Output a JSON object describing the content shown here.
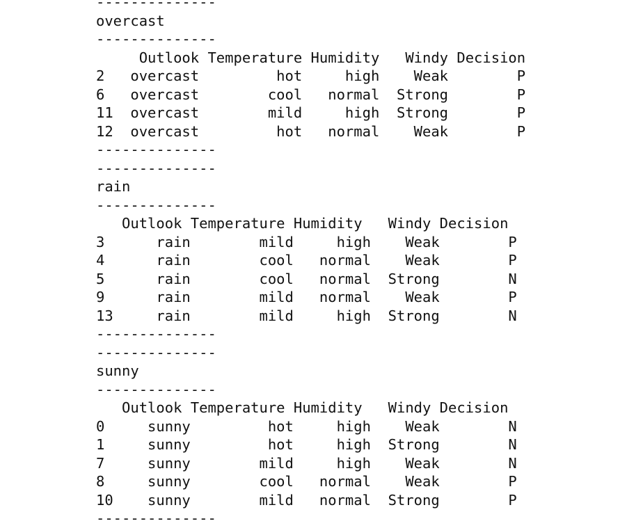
{
  "output_lines": [
    "--------------",
    "overcast",
    "--------------",
    "     Outlook Temperature Humidity   Windy Decision",
    "2   overcast         hot     high    Weak        P",
    "6   overcast        cool   normal  Strong        P",
    "11  overcast        mild     high  Strong        P",
    "12  overcast         hot   normal    Weak        P",
    "--------------",
    "--------------",
    "rain",
    "--------------",
    "   Outlook Temperature Humidity   Windy Decision",
    "3      rain        mild     high    Weak        P",
    "4      rain        cool   normal    Weak        P",
    "5      rain        cool   normal  Strong        N",
    "9      rain        mild   normal    Weak        P",
    "13     rain        mild     high  Strong        N",
    "--------------",
    "--------------",
    "sunny",
    "--------------",
    "   Outlook Temperature Humidity   Windy Decision",
    "0     sunny         hot     high    Weak        N",
    "1     sunny         hot     high  Strong        N",
    "7     sunny        mild     high    Weak        N",
    "8     sunny        cool   normal    Weak        P",
    "10    sunny        mild   normal  Strong        P",
    "--------------"
  ]
}
